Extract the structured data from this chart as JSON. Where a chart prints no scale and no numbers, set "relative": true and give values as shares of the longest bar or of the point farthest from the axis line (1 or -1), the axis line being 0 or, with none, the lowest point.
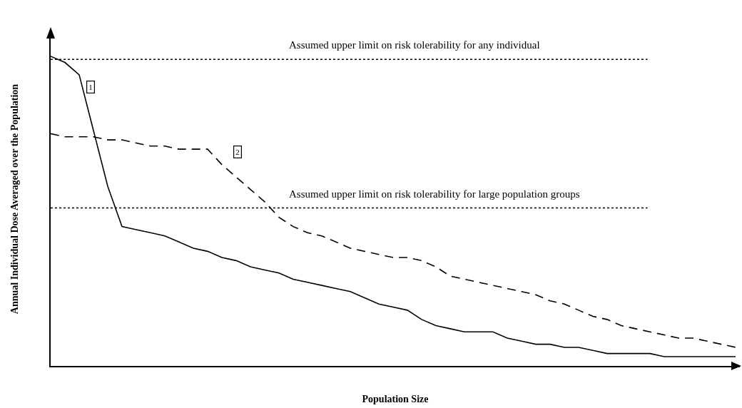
{
  "chart_data": {
    "type": "line",
    "relative": true,
    "xlabel": "Population Size",
    "ylabel": "Annual Individual Dose Averaged over the Population",
    "categories": [
      null,
      null,
      null,
      null,
      null,
      null,
      null,
      null,
      null,
      null,
      null,
      null,
      null,
      null,
      null,
      null,
      null,
      null,
      null,
      null,
      null,
      null,
      null,
      null,
      null,
      null,
      null,
      null,
      null,
      null,
      null,
      null,
      null,
      null,
      null,
      null,
      null,
      null,
      null,
      null,
      null,
      null,
      null,
      null,
      null,
      null,
      null,
      null,
      null
    ],
    "series": [
      {
        "name": "1",
        "color": "#000000",
        "line_style": "solid",
        "values": [
          1.0,
          0.98,
          0.94,
          0.76,
          0.58,
          0.45,
          0.44,
          0.43,
          0.42,
          0.4,
          0.38,
          0.37,
          0.35,
          0.34,
          0.32,
          0.31,
          0.3,
          0.28,
          0.27,
          0.26,
          0.25,
          0.24,
          0.22,
          0.2,
          0.19,
          0.18,
          0.15,
          0.13,
          0.12,
          0.11,
          0.11,
          0.11,
          0.09,
          0.08,
          0.07,
          0.07,
          0.06,
          0.06,
          0.05,
          0.04,
          0.04,
          0.04,
          0.04,
          0.03,
          0.03,
          0.03,
          0.03,
          0.03,
          0.03
        ]
      },
      {
        "name": "2",
        "color": "#000000",
        "line_style": "dashed",
        "values": [
          0.75,
          0.74,
          0.74,
          0.74,
          0.73,
          0.73,
          0.72,
          0.71,
          0.71,
          0.7,
          0.7,
          0.7,
          0.65,
          0.61,
          0.57,
          0.53,
          0.48,
          0.45,
          0.43,
          0.42,
          0.4,
          0.38,
          0.37,
          0.36,
          0.35,
          0.35,
          0.34,
          0.32,
          0.29,
          0.28,
          0.27,
          0.26,
          0.25,
          0.24,
          0.23,
          0.21,
          0.2,
          0.18,
          0.16,
          0.15,
          0.13,
          0.12,
          0.11,
          0.1,
          0.09,
          0.09,
          0.08,
          0.07,
          0.06
        ]
      }
    ],
    "ref_lines": [
      {
        "axis": "y",
        "value": 0.99,
        "label": "Assumed upper limit on risk tolerability for any individual",
        "color": "#000000",
        "line_style": "dotted"
      },
      {
        "axis": "y",
        "value": 0.51,
        "label": "Assumed upper limit on risk tolerability for large population groups",
        "color": "#000000",
        "line_style": "dotted"
      }
    ],
    "grid": false,
    "legend": false,
    "marker": "none"
  }
}
